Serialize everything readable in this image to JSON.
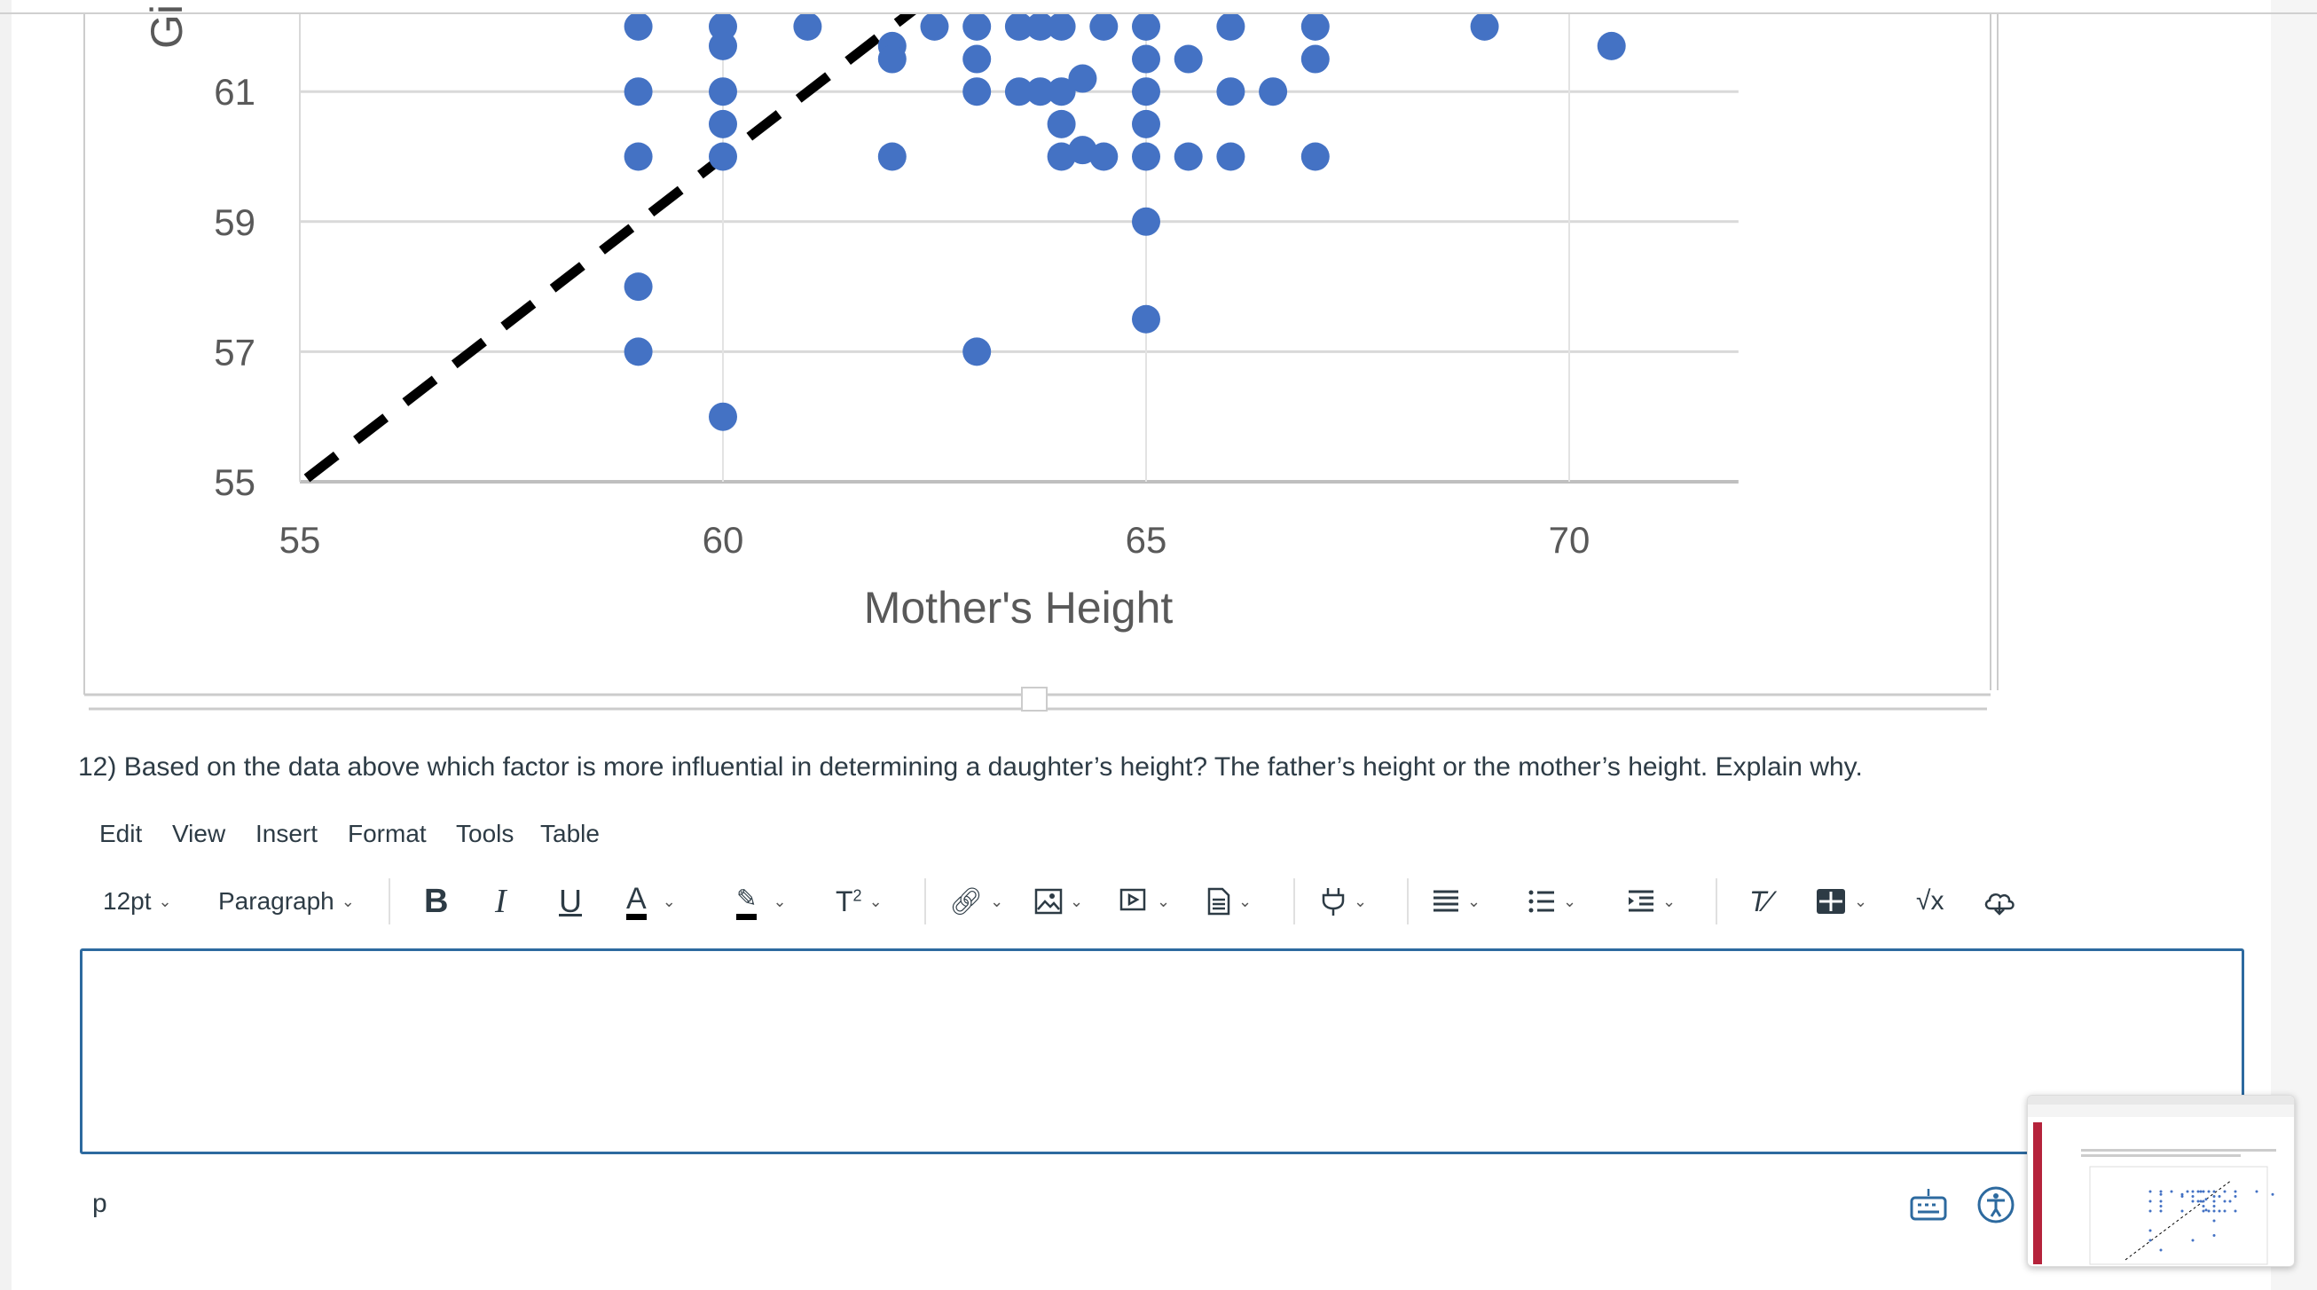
{
  "chart_data": {
    "type": "scatter",
    "xlabel": "Mother's Height",
    "ylabel": "Gi",
    "x_ticks": [
      55,
      60,
      65,
      70
    ],
    "y_ticks": [
      55,
      57,
      59,
      61
    ],
    "xlim": [
      55,
      72
    ],
    "ylim": [
      55,
      62.3
    ],
    "grid": true,
    "marker_color": "#4472c4",
    "reference_line": {
      "style": "dashed",
      "color": "#000000",
      "from": [
        55,
        55
      ],
      "to": [
        62.3,
        62.3
      ]
    },
    "points": [
      [
        59,
        62
      ],
      [
        60,
        62
      ],
      [
        61,
        62
      ],
      [
        62.5,
        62
      ],
      [
        63,
        62
      ],
      [
        63.5,
        62
      ],
      [
        63.75,
        62
      ],
      [
        64,
        62
      ],
      [
        64.5,
        62
      ],
      [
        65,
        62
      ],
      [
        66,
        62
      ],
      [
        67,
        62
      ],
      [
        69,
        62
      ],
      [
        60,
        61.7
      ],
      [
        62,
        61.7
      ],
      [
        70.5,
        61.7
      ],
      [
        62,
        61.5
      ],
      [
        63,
        61.5
      ],
      [
        65,
        61.5
      ],
      [
        65.5,
        61.5
      ],
      [
        67,
        61.5
      ],
      [
        64.25,
        61.2
      ],
      [
        59,
        61
      ],
      [
        60,
        61
      ],
      [
        63,
        61
      ],
      [
        63.5,
        61
      ],
      [
        63.75,
        61
      ],
      [
        64,
        61
      ],
      [
        65,
        61
      ],
      [
        66,
        61
      ],
      [
        66.5,
        61
      ],
      [
        60,
        60.5
      ],
      [
        64,
        60.5
      ],
      [
        65,
        60.5
      ],
      [
        59,
        60
      ],
      [
        60,
        60
      ],
      [
        62,
        60
      ],
      [
        64,
        60
      ],
      [
        64.25,
        60.1
      ],
      [
        64.5,
        60
      ],
      [
        65,
        60
      ],
      [
        65.5,
        60
      ],
      [
        66,
        60
      ],
      [
        67,
        60
      ],
      [
        65,
        59
      ],
      [
        59,
        58
      ],
      [
        65,
        57.5
      ],
      [
        59,
        57
      ],
      [
        63,
        57
      ],
      [
        60,
        56
      ]
    ]
  },
  "question": "12) Based on the data above which factor is more influential in determining a daughter’s height? The father’s height or the mother’s height. Explain why.",
  "editor": {
    "menu": [
      "Edit",
      "View",
      "Insert",
      "Format",
      "Tools",
      "Table"
    ],
    "font_size": "12pt",
    "block_format": "Paragraph",
    "toolbar_icons": [
      "bold-icon",
      "italic-icon",
      "underline-icon",
      "text-color-icon",
      "highlight-icon",
      "superscript-icon",
      "link-icon",
      "image-icon",
      "media-icon",
      "document-icon",
      "apps-plug-icon",
      "align-icon",
      "bullet-list-icon",
      "indent-icon",
      "clear-format-icon",
      "table-icon",
      "math-sqrt-icon",
      "cloud-icon"
    ],
    "content": "",
    "status_path": "p",
    "accent": "#2d6a9f"
  }
}
